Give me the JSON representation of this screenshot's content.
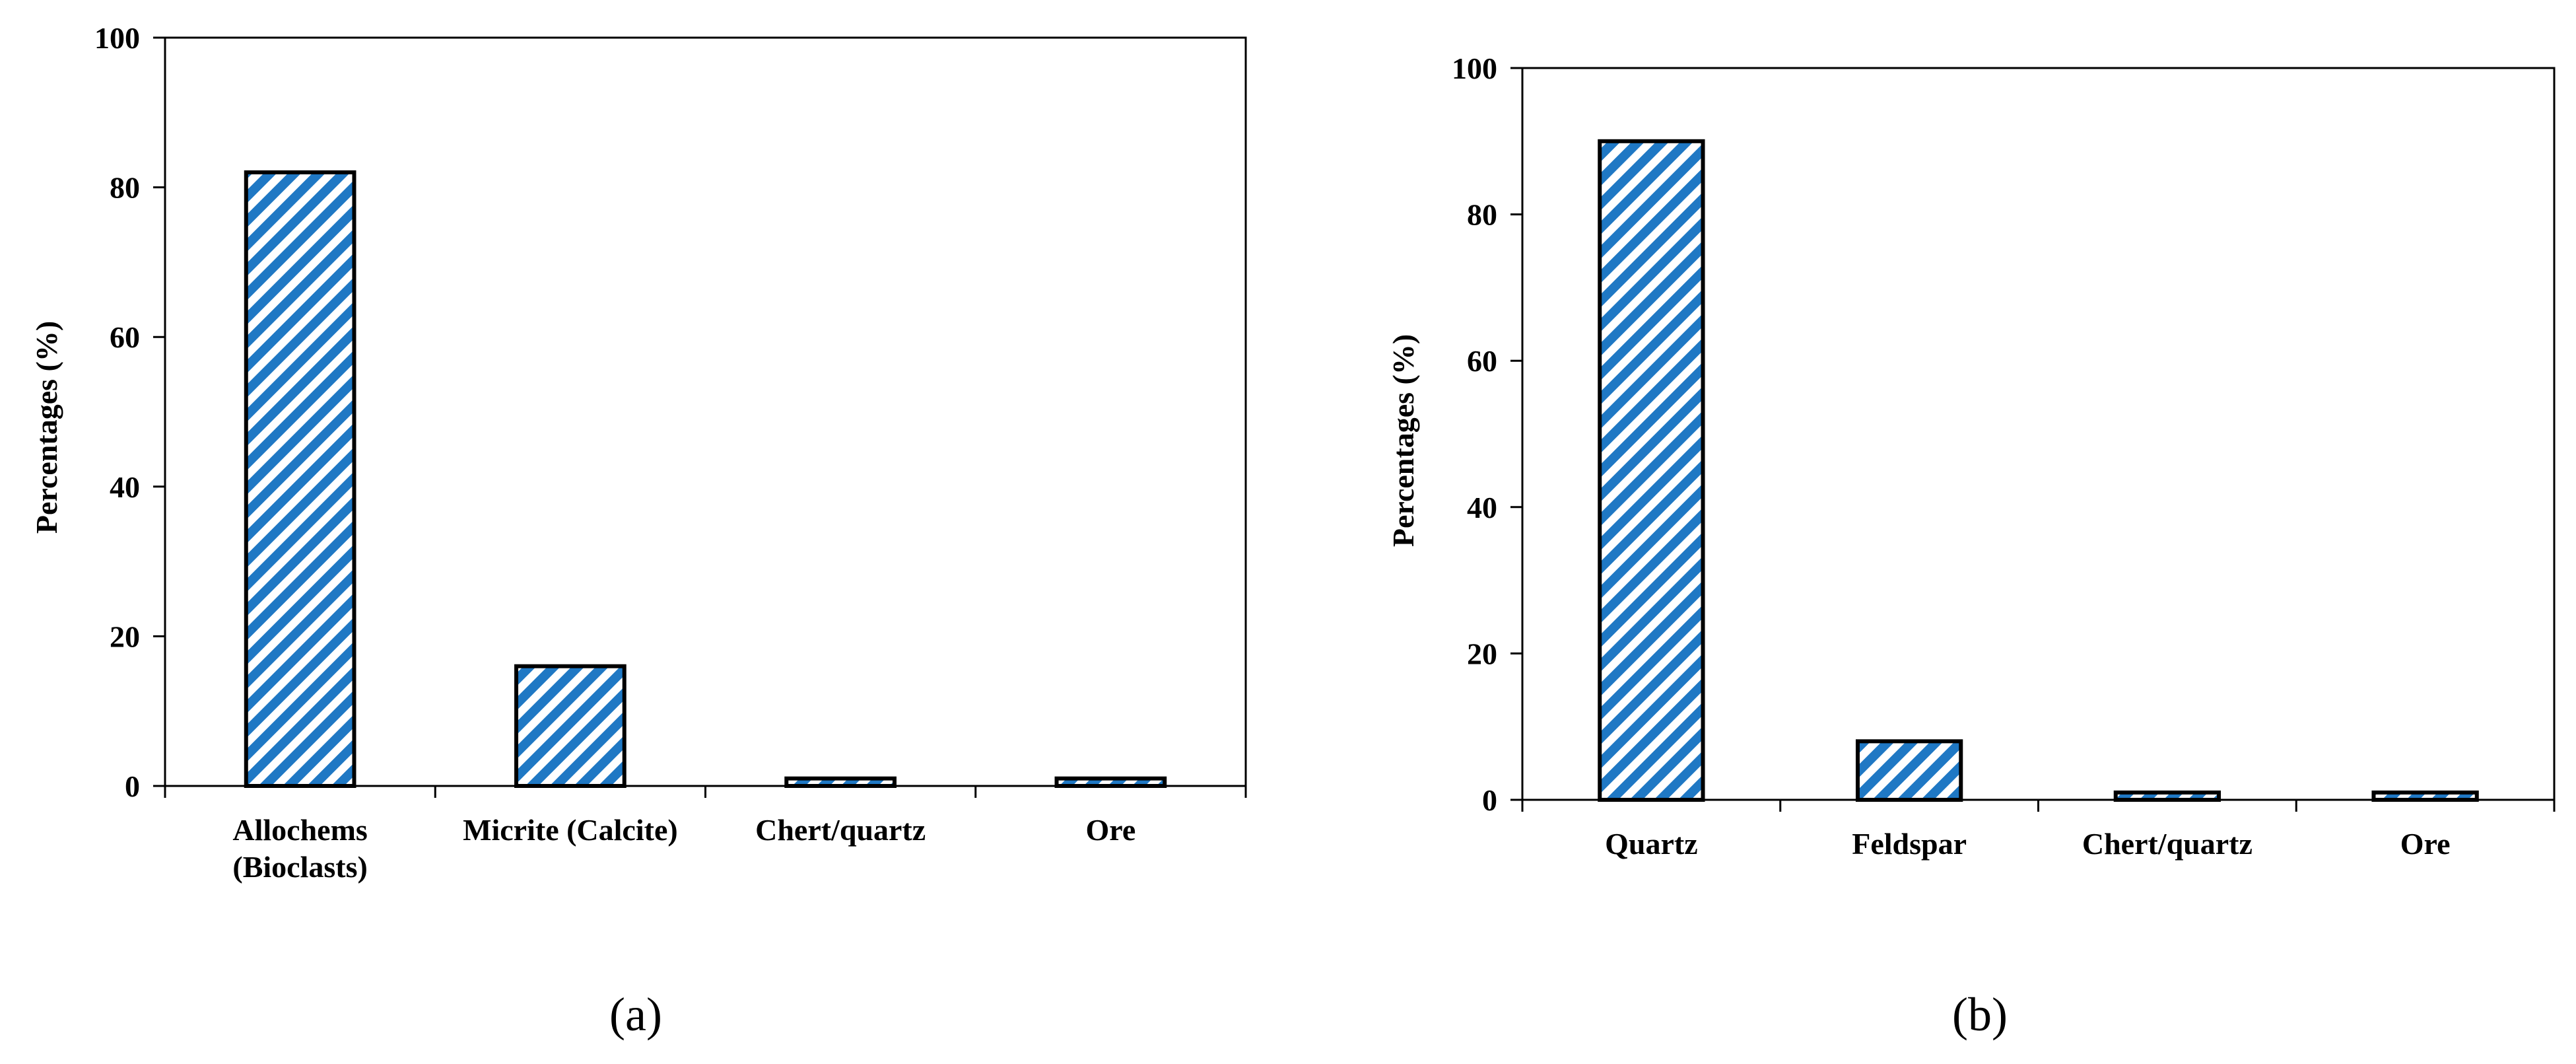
{
  "colors": {
    "bar_stripe": "#1f78c4",
    "bar_gap": "#ffffff",
    "axis": "#000000"
  },
  "chart_data": [
    {
      "type": "bar",
      "panel_label": "(a)",
      "categories": [
        "Allochems (Bioclasts)",
        "Micrite (Calcite)",
        "Chert/quartz",
        "Ore"
      ],
      "category_lines": [
        [
          "Allochems",
          "(Bioclasts)"
        ],
        [
          "Micrite (Calcite)"
        ],
        [
          "Chert/quartz"
        ],
        [
          "Ore"
        ]
      ],
      "values": [
        82,
        16,
        1,
        1
      ],
      "xlabel": "",
      "ylabel": "Percentages (%)",
      "ylim": [
        0,
        100
      ],
      "yticks": [
        0,
        20,
        40,
        60,
        80,
        100
      ],
      "grid": false,
      "legend": "none"
    },
    {
      "type": "bar",
      "panel_label": "(b)",
      "categories": [
        "Quartz",
        "Feldspar",
        "Chert/quartz",
        "Ore"
      ],
      "category_lines": [
        [
          "Quartz"
        ],
        [
          "Feldspar"
        ],
        [
          "Chert/quartz"
        ],
        [
          "Ore"
        ]
      ],
      "values": [
        90,
        8,
        1,
        1
      ],
      "xlabel": "",
      "ylabel": "Percentages (%)",
      "ylim": [
        0,
        100
      ],
      "yticks": [
        0,
        20,
        40,
        60,
        80,
        100
      ],
      "grid": false,
      "legend": "none"
    }
  ]
}
